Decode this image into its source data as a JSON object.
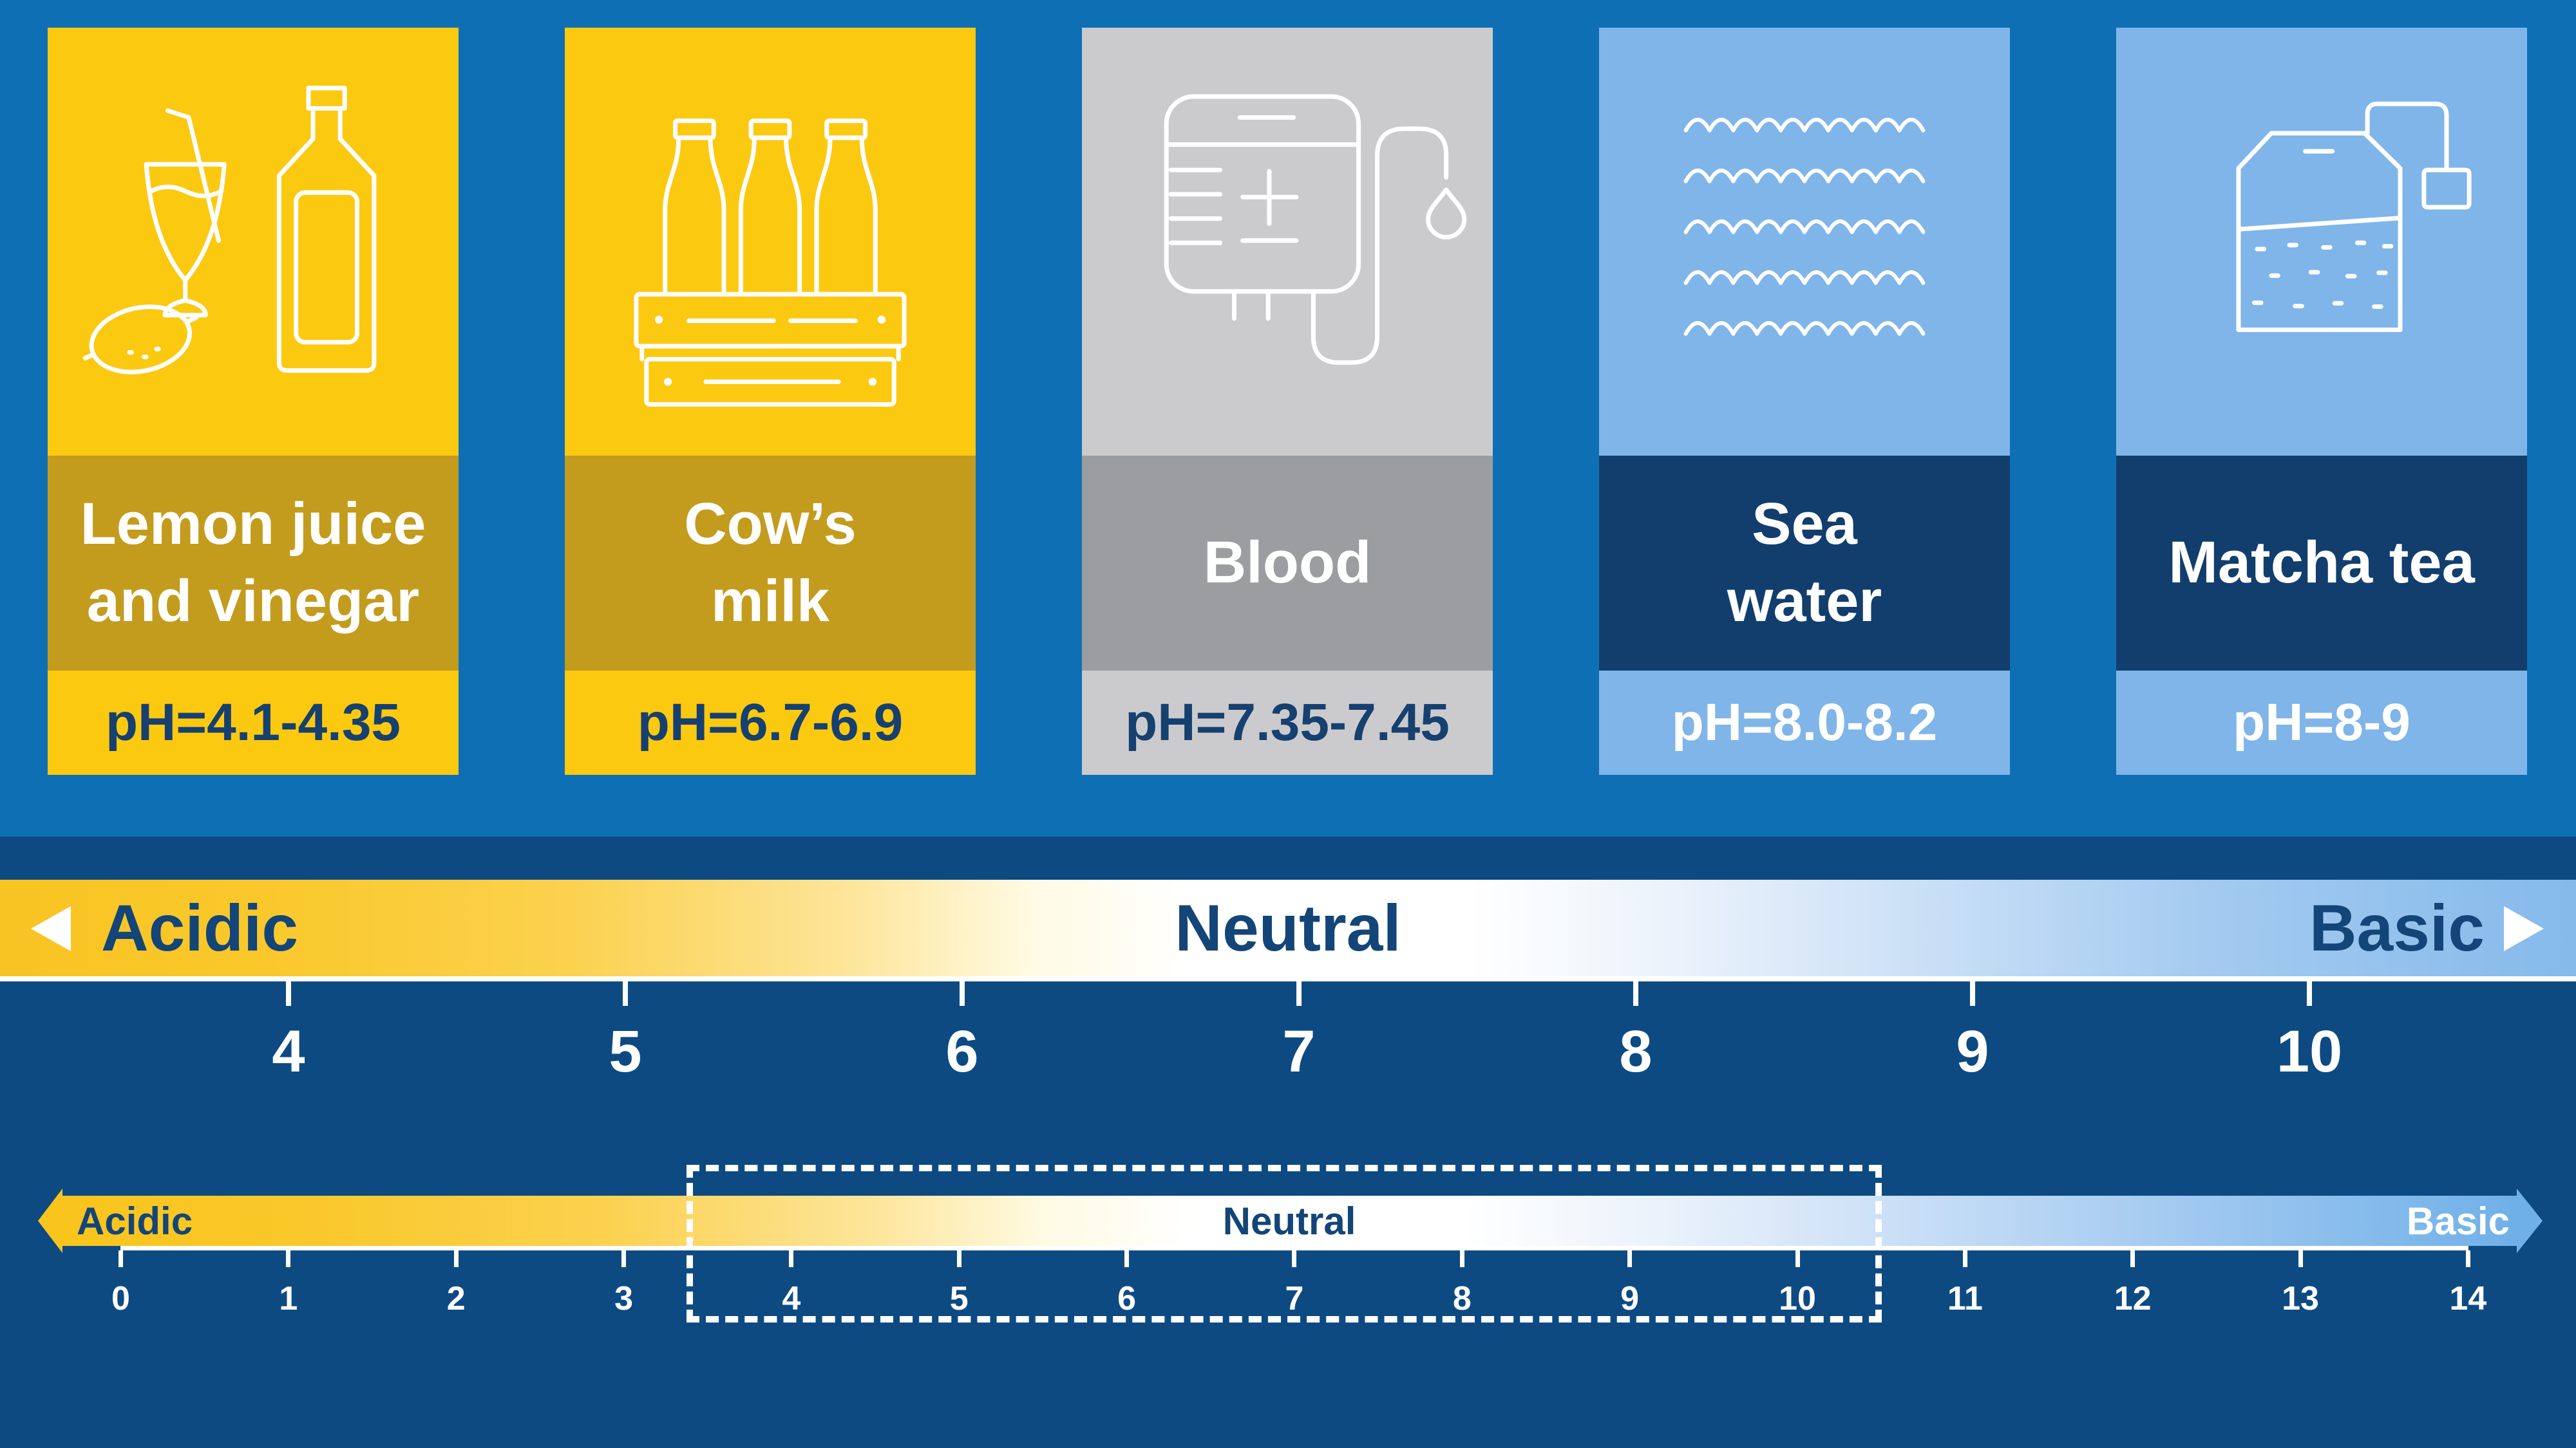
{
  "title": "pH levels infographic",
  "cards": [
    {
      "name": "lemon-juice-and-vinegar",
      "label_line1": "Lemon juice",
      "label_line2": "and vinegar",
      "ph": "pH=4.1-4.35",
      "icon": "lemon-glass-bottle-icon",
      "theme": "yellow"
    },
    {
      "name": "cows-milk",
      "label_line1": "Cow’s",
      "label_line2": "milk",
      "ph": "pH=6.7-6.9",
      "icon": "milk-crate-icon",
      "theme": "yellow"
    },
    {
      "name": "blood",
      "label_line1": "Blood",
      "label_line2": "",
      "ph": "pH=7.35-7.45",
      "icon": "blood-bag-icon",
      "theme": "grey"
    },
    {
      "name": "sea-water",
      "label_line1": "Sea",
      "label_line2": "water",
      "ph": "pH=8.0-8.2",
      "icon": "sea-waves-icon",
      "theme": "blue"
    },
    {
      "name": "matcha-tea",
      "label_line1": "Matcha tea",
      "label_line2": "",
      "ph": "pH=8-9",
      "icon": "tea-bag-icon",
      "theme": "blue"
    }
  ],
  "main_scale": {
    "acidic_label": "Acidic",
    "neutral_label": "Neutral",
    "basic_label": "Basic",
    "ticks": [
      "4",
      "5",
      "6",
      "7",
      "8",
      "9",
      "10"
    ]
  },
  "detail_scale": {
    "acidic_label": "Acidic",
    "neutral_label": "Neutral",
    "basic_label": "Basic",
    "ticks": [
      "0",
      "1",
      "2",
      "3",
      "4",
      "5",
      "6",
      "7",
      "8",
      "9",
      "10",
      "11",
      "12",
      "13",
      "14"
    ],
    "highlight_range": "3.4-10.6"
  },
  "colors": {
    "bright_blue_bg": "#0F6FB5",
    "navy_bg": "#0E4A82",
    "card_yellow": "#FCC911",
    "card_olive_band": "#C39C1E",
    "card_grey": "#CBCBCD",
    "card_grey_band": "#9C9DA0",
    "card_light_blue": "#7FB5E9",
    "card_navy_band": "#123E6D",
    "scale_text_navy": "#134578",
    "ph_text_navy": "#16406F",
    "gradient_yellow": "#F8C423",
    "gradient_blue": "#85BAEB",
    "white": "#FFFFFF"
  }
}
